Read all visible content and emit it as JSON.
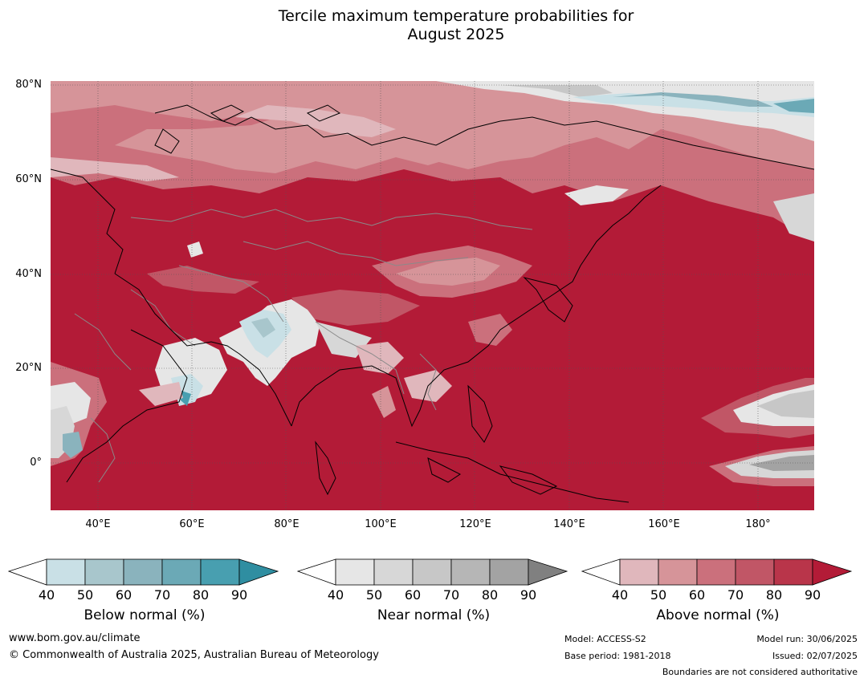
{
  "title_lines": [
    "Tercile maximum temperature probabilities for",
    "August 2025"
  ],
  "lat_labels": [
    "80°N",
    "60°N",
    "40°N",
    "20°N",
    "0°"
  ],
  "lon_labels": [
    "40°E",
    "60°E",
    "80°E",
    "100°E",
    "120°E",
    "140°E",
    "160°E",
    "180°"
  ],
  "colors": {
    "above": [
      "#ffffff",
      "#e0b7bc",
      "#d69499",
      "#cb707c",
      "#c15666",
      "#b9354a",
      "#b31b37"
    ],
    "near": [
      "#ffffff",
      "#e6e6e6",
      "#d7d7d7",
      "#c7c7c7",
      "#b6b6b6",
      "#a3a3a3",
      "#808080"
    ],
    "below": [
      "#ffffff",
      "#c9e0e6",
      "#a8c6cc",
      "#8ab3bd",
      "#6ba9b6",
      "#489fb0",
      "#2f8ea1"
    ]
  },
  "colorbars": [
    {
      "key": "below",
      "label": "Below normal (%)",
      "ticks": [
        "40",
        "50",
        "60",
        "70",
        "80",
        "90"
      ]
    },
    {
      "key": "near",
      "label": "Near normal (%)",
      "ticks": [
        "40",
        "50",
        "60",
        "70",
        "80",
        "90"
      ]
    },
    {
      "key": "above",
      "label": "Above normal (%)",
      "ticks": [
        "40",
        "50",
        "60",
        "70",
        "80",
        "90"
      ]
    }
  ],
  "footer": {
    "website": "www.bom.gov.au/climate",
    "copyright": "© Commonwealth of Australia 2025, Australian Bureau of Meteorology",
    "model": "Model: ACCESS-S2",
    "base_period": "Base period: 1981-2018",
    "model_run": "Model run: 30/06/2025",
    "issued": "Issued: 02/07/2025",
    "disclaimer": "Boundaries are not considered authoritative"
  }
}
